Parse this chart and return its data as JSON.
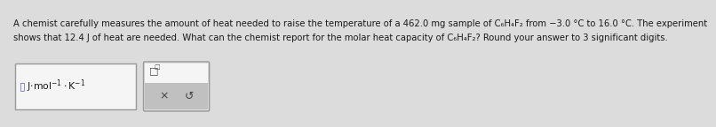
{
  "background_color": "#dcdcdc",
  "text_line1": "A chemist carefully measures the amount of heat needed to raise the temperature of a 462.0 mg sample of C₆H₄F₂ from −3.0 °C to 16.0 °C. The experiment",
  "text_line2": "shows that 12.4 J of heat are needed. What can the chemist report for the molar heat capacity of C₆H₄F₂? Round your answer to 3 significant digits.",
  "font_size_body": 7.2,
  "font_size_unit": 7.8,
  "text_color": "#1a1a1a",
  "box1_facecolor": "#f5f5f5",
  "box1_edgecolor": "#999999",
  "box2_facecolor_top": "#f5f5f5",
  "box2_facecolor_bot": "#c0c0c0",
  "box2_edgecolor": "#999999",
  "cursor_color": "#6666bb",
  "unit_text": "J·mol⁻¹·K⁻¹",
  "x_symbol": "×",
  "undo_symbol": "↺"
}
